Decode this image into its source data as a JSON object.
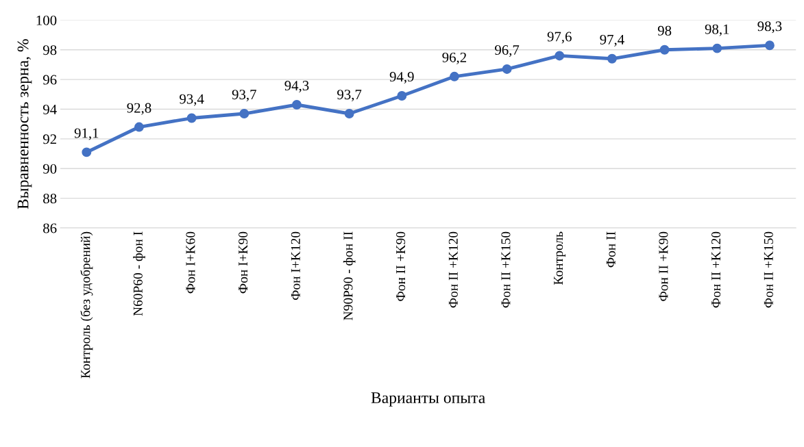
{
  "chart_data": {
    "type": "line",
    "xlabel": "Варианты опыта",
    "ylabel": "Выравненность зерна, %",
    "categories": [
      "Контроль (без удобрений)",
      "N60P60 - фон I",
      "Фон I+K60",
      "Фон I+K90",
      "Фон I+K120",
      "N90P90 - фон II",
      "Фон II +K90",
      "Фон II +K120",
      "Фон II +K150",
      "Контроль",
      "Фон II",
      "Фон II +K90",
      "Фон II +K120",
      "Фон II +K150"
    ],
    "series": [
      {
        "color": "#4472c4",
        "values": [
          91.1,
          92.8,
          93.4,
          93.7,
          94.3,
          93.7,
          94.9,
          96.2,
          96.7,
          97.6,
          97.4,
          98,
          98.1,
          98.3
        ],
        "value_labels": [
          "91,1",
          "92,8",
          "93,4",
          "93,7",
          "94,3",
          "93,7",
          "94,9",
          "96,2",
          "96,7",
          "97,6",
          "97,4",
          "98",
          "98,1",
          "98,3"
        ]
      }
    ],
    "ylim": [
      86,
      100
    ],
    "yticks": [
      86,
      88,
      90,
      92,
      94,
      96,
      98,
      100
    ],
    "grid": "y",
    "marker": "circle",
    "line_style": "solid",
    "legend": false
  }
}
